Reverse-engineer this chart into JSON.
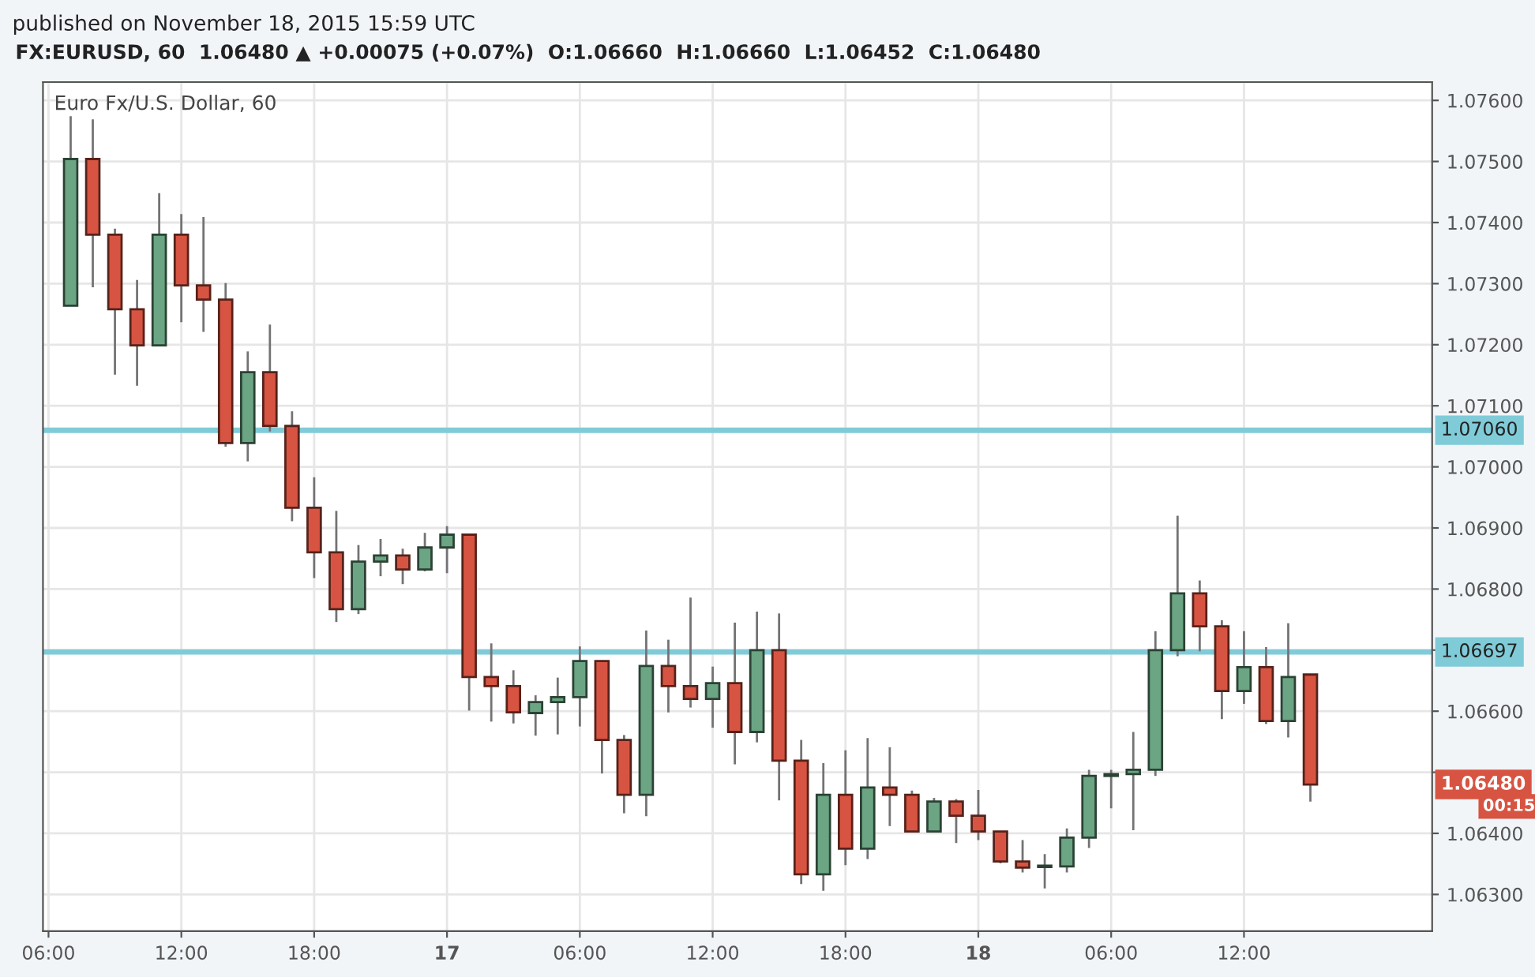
{
  "chart_data": {
    "type": "candlestick",
    "title": "Euro Fx/U.S. Dollar, 60",
    "annotations": [
      "published on November 18, 2015 15:59 UTC",
      "FX:EURUSD, 60  1.06480 ▲ +0.00075 (+0.07%)  O:1.06660  H:1.06660  L:1.06452  C:1.06480",
      "1.06480",
      "00:15"
    ],
    "x": [
      "2015-11-16T07:00",
      "2015-11-16T08:00",
      "2015-11-16T09:00",
      "2015-11-16T10:00",
      "2015-11-16T11:00",
      "2015-11-16T12:00",
      "2015-11-16T13:00",
      "2015-11-16T14:00",
      "2015-11-16T15:00",
      "2015-11-16T16:00",
      "2015-11-16T17:00",
      "2015-11-16T18:00",
      "2015-11-16T19:00",
      "2015-11-16T20:00",
      "2015-11-16T21:00",
      "2015-11-16T22:00",
      "2015-11-16T23:00",
      "2015-11-17T00:00",
      "2015-11-17T01:00",
      "2015-11-17T02:00",
      "2015-11-17T03:00",
      "2015-11-17T04:00",
      "2015-11-17T05:00",
      "2015-11-17T06:00",
      "2015-11-17T07:00",
      "2015-11-17T08:00",
      "2015-11-17T09:00",
      "2015-11-17T10:00",
      "2015-11-17T11:00",
      "2015-11-17T12:00",
      "2015-11-17T13:00",
      "2015-11-17T14:00",
      "2015-11-17T15:00",
      "2015-11-17T16:00",
      "2015-11-17T17:00",
      "2015-11-17T18:00",
      "2015-11-17T19:00",
      "2015-11-17T20:00",
      "2015-11-17T21:00",
      "2015-11-17T22:00",
      "2015-11-17T23:00",
      "2015-11-18T00:00",
      "2015-11-18T01:00",
      "2015-11-18T02:00",
      "2015-11-18T03:00",
      "2015-11-18T04:00",
      "2015-11-18T05:00",
      "2015-11-18T06:00",
      "2015-11-18T07:00",
      "2015-11-18T08:00",
      "2015-11-18T09:00",
      "2015-11-18T10:00",
      "2015-11-18T11:00",
      "2015-11-18T12:00",
      "2015-11-18T13:00",
      "2015-11-18T14:00",
      "2015-11-18T15:00"
    ],
    "ohlc": [
      [
        1.07264,
        1.07574,
        1.07264,
        1.07504
      ],
      [
        1.07504,
        1.07569,
        1.07294,
        1.0738
      ],
      [
        1.0738,
        1.0739,
        1.07151,
        1.07258
      ],
      [
        1.07258,
        1.07306,
        1.07133,
        1.07199
      ],
      [
        1.07199,
        1.07448,
        1.07199,
        1.0738
      ],
      [
        1.0738,
        1.07414,
        1.07237,
        1.07297
      ],
      [
        1.07297,
        1.07409,
        1.07221,
        1.07274
      ],
      [
        1.07274,
        1.07301,
        1.07033,
        1.07039
      ],
      [
        1.07039,
        1.07189,
        1.07009,
        1.07155
      ],
      [
        1.07155,
        1.07233,
        1.07058,
        1.07067
      ],
      [
        1.07067,
        1.07091,
        1.06911,
        1.06933
      ],
      [
        1.06933,
        1.06983,
        1.06818,
        1.0686
      ],
      [
        1.0686,
        1.06928,
        1.06746,
        1.06767
      ],
      [
        1.06767,
        1.06872,
        1.06759,
        1.06845
      ],
      [
        1.06845,
        1.06882,
        1.06821,
        1.06855
      ],
      [
        1.06855,
        1.06866,
        1.06808,
        1.06832
      ],
      [
        1.06832,
        1.06892,
        1.06829,
        1.06868
      ],
      [
        1.06868,
        1.06903,
        1.06826,
        1.06889
      ],
      [
        1.06889,
        1.06889,
        1.06601,
        1.06656
      ],
      [
        1.06656,
        1.06711,
        1.06583,
        1.06641
      ],
      [
        1.06641,
        1.06667,
        1.0658,
        1.06598
      ],
      [
        1.06597,
        1.06626,
        1.0656,
        1.06615
      ],
      [
        1.06615,
        1.06655,
        1.06562,
        1.06623
      ],
      [
        1.06623,
        1.06706,
        1.06575,
        1.06682
      ],
      [
        1.06682,
        1.06682,
        1.06498,
        1.06553
      ],
      [
        1.06553,
        1.06561,
        1.06433,
        1.06463
      ],
      [
        1.06463,
        1.06732,
        1.06428,
        1.06674
      ],
      [
        1.06674,
        1.06717,
        1.06598,
        1.06641
      ],
      [
        1.06641,
        1.06786,
        1.06606,
        1.0662
      ],
      [
        1.0662,
        1.06673,
        1.06573,
        1.06646
      ],
      [
        1.06646,
        1.06745,
        1.06513,
        1.06566
      ],
      [
        1.06566,
        1.06763,
        1.06549,
        1.067
      ],
      [
        1.067,
        1.0676,
        1.06454,
        1.06519
      ],
      [
        1.06519,
        1.06553,
        1.06317,
        1.06333
      ],
      [
        1.06333,
        1.06515,
        1.06306,
        1.06463
      ],
      [
        1.06463,
        1.06536,
        1.06348,
        1.06375
      ],
      [
        1.06375,
        1.06556,
        1.06358,
        1.06475
      ],
      [
        1.06475,
        1.06541,
        1.06412,
        1.06463
      ],
      [
        1.06463,
        1.0647,
        1.06403,
        1.06403
      ],
      [
        1.06403,
        1.06458,
        1.06403,
        1.06452
      ],
      [
        1.06452,
        1.06456,
        1.06384,
        1.06429
      ],
      [
        1.06429,
        1.06471,
        1.06389,
        1.06403
      ],
      [
        1.06403,
        1.06403,
        1.06351,
        1.06354
      ],
      [
        1.06354,
        1.06389,
        1.06336,
        1.06344
      ],
      [
        1.06345,
        1.06366,
        1.0631,
        1.06347
      ],
      [
        1.06346,
        1.06408,
        1.06336,
        1.06393
      ],
      [
        1.06393,
        1.06504,
        1.06376,
        1.06494
      ],
      [
        1.06494,
        1.06504,
        1.06441,
        1.06497
      ],
      [
        1.06497,
        1.06566,
        1.06405,
        1.06504
      ],
      [
        1.06504,
        1.06731,
        1.06494,
        1.067
      ],
      [
        1.067,
        1.0692,
        1.0669,
        1.06793
      ],
      [
        1.06793,
        1.06814,
        1.06698,
        1.06739
      ],
      [
        1.06739,
        1.06749,
        1.06587,
        1.06633
      ],
      [
        1.06633,
        1.06731,
        1.06612,
        1.06672
      ],
      [
        1.06672,
        1.06705,
        1.06579,
        1.06584
      ],
      [
        1.06584,
        1.06744,
        1.06557,
        1.06656
      ],
      [
        1.0666,
        1.0666,
        1.06452,
        1.0648
      ]
    ],
    "colors": [
      "#6ba583",
      "#d75442",
      "#d75442",
      "#d75442",
      "#6ba583",
      "#d75442",
      "#d75442",
      "#d75442",
      "#6ba583",
      "#d75442",
      "#d75442",
      "#d75442",
      "#d75442",
      "#6ba583",
      "#6ba583",
      "#d75442",
      "#6ba583",
      "#6ba583",
      "#d75442",
      "#d75442",
      "#d75442",
      "#6ba583",
      "#6ba583",
      "#6ba583",
      "#d75442",
      "#d75442",
      "#6ba583",
      "#d75442",
      "#d75442",
      "#6ba583",
      "#d75442",
      "#6ba583",
      "#d75442",
      "#d75442",
      "#6ba583",
      "#d75442",
      "#6ba583",
      "#d75442",
      "#d75442",
      "#6ba583",
      "#d75442",
      "#d75442",
      "#d75442",
      "#d75442",
      "#6ba583",
      "#6ba583",
      "#6ba583",
      "#6ba583",
      "#6ba583",
      "#6ba583",
      "#6ba583",
      "#d75442",
      "#d75442",
      "#6ba583",
      "#d75442",
      "#6ba583",
      "#d75442"
    ],
    "ref_lines": [
      {
        "axis": "y",
        "value": 1.0706,
        "label": "1.07060",
        "color": "#80cbd8"
      },
      {
        "axis": "y",
        "value": 1.06697,
        "label": "1.06697",
        "color": "#80cbd8"
      }
    ],
    "xlim": [
      "2015-11-16T05:45",
      "2015-11-18T20:30"
    ],
    "xticks": [
      {
        "value": "2015-11-16T06:00",
        "label": "06:00"
      },
      {
        "value": "2015-11-16T12:00",
        "label": "12:00"
      },
      {
        "value": "2015-11-16T18:00",
        "label": "18:00"
      },
      {
        "value": "2015-11-17T00:00",
        "label": "17"
      },
      {
        "value": "2015-11-17T06:00",
        "label": "06:00"
      },
      {
        "value": "2015-11-17T12:00",
        "label": "12:00"
      },
      {
        "value": "2015-11-17T18:00",
        "label": "18:00"
      },
      {
        "value": "2015-11-18T00:00",
        "label": "18"
      },
      {
        "value": "2015-11-18T06:00",
        "label": "06:00"
      },
      {
        "value": "2015-11-18T12:00",
        "label": "12:00"
      }
    ],
    "ylim": [
      1.0624,
      1.0763
    ],
    "yticks": [
      {
        "value": 1.063,
        "label": "1.06300"
      },
      {
        "value": 1.064,
        "label": "1.06400"
      },
      {
        "value": 1.065,
        "label": null
      },
      {
        "value": 1.066,
        "label": "1.06600"
      },
      {
        "value": 1.067,
        "label": null
      },
      {
        "value": 1.068,
        "label": "1.06800"
      },
      {
        "value": 1.069,
        "label": "1.06900"
      },
      {
        "value": 1.07,
        "label": "1.07000"
      },
      {
        "value": 1.071,
        "label": "1.07100"
      },
      {
        "value": 1.072,
        "label": "1.07200"
      },
      {
        "value": 1.073,
        "label": "1.07300"
      },
      {
        "value": 1.074,
        "label": "1.07400"
      },
      {
        "value": 1.075,
        "label": "1.07500"
      },
      {
        "value": 1.076,
        "label": "1.07600"
      }
    ],
    "grid": true
  }
}
